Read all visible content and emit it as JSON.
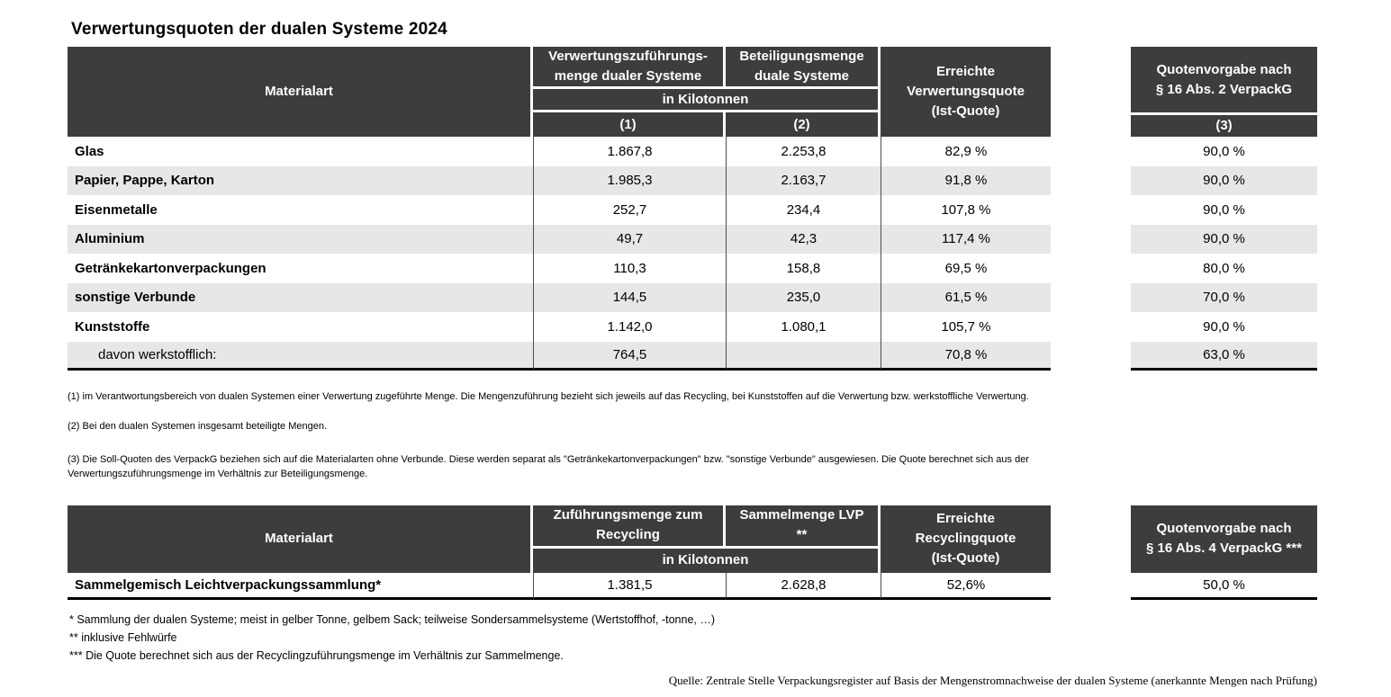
{
  "page": {
    "title": "Verwertungsquoten der dualen Systeme 2024",
    "source": "Quelle: Zentrale Stelle Verpackungsregister auf Basis der Mengenstromnachweise der dualen Systeme (anerkannte Mengen nach Prüfung)"
  },
  "colors": {
    "header_bg": "#3d3d3d",
    "row_shade": "#e7e7e7",
    "separator": "#4d4d4d"
  },
  "table1": {
    "headers": {
      "materialart": "Materialart",
      "col1": "Verwertungszuführungs-\nmenge dualer Systeme",
      "col2": "Beteiligungsmenge\nduale Systeme",
      "unit": "in Kilotonnen",
      "ref1": "(1)",
      "ref2": "(2)",
      "ist": "Erreichte\nVerwertungsquote\n(Ist-Quote)",
      "soll": "Quotenvorgabe nach\n§ 16 Abs. 2 VerpackG",
      "ref3": "(3)"
    },
    "rows": [
      {
        "material": "Glas",
        "v1": "1.867,8",
        "v2": "2.253,8",
        "ist": "82,9 %",
        "soll": "90,0 %",
        "indent": false
      },
      {
        "material": "Papier, Pappe, Karton",
        "v1": "1.985,3",
        "v2": "2.163,7",
        "ist": "91,8 %",
        "soll": "90,0 %",
        "indent": false
      },
      {
        "material": "Eisenmetalle",
        "v1": "252,7",
        "v2": "234,4",
        "ist": "107,8 %",
        "soll": "90,0 %",
        "indent": false
      },
      {
        "material": "Aluminium",
        "v1": "49,7",
        "v2": "42,3",
        "ist": "117,4 %",
        "soll": "90,0 %",
        "indent": false
      },
      {
        "material": "Getränkekartonverpackungen",
        "v1": "110,3",
        "v2": "158,8",
        "ist": "69,5 %",
        "soll": "80,0 %",
        "indent": false
      },
      {
        "material": "sonstige Verbunde",
        "v1": "144,5",
        "v2": "235,0",
        "ist": "61,5 %",
        "soll": "70,0 %",
        "indent": false
      },
      {
        "material": "Kunststoffe",
        "v1": "1.142,0",
        "v2": "1.080,1",
        "ist": "105,7 %",
        "soll": "90,0 %",
        "indent": false
      },
      {
        "material": "davon werkstofflich:",
        "v1": "764,5",
        "v2": "",
        "ist": "70,8 %",
        "soll": "63,0 %",
        "indent": true
      }
    ]
  },
  "footnotes_table1": [
    "(1) im Verantwortungsbereich von dualen Systemen einer Verwertung zugeführte Menge. Die Mengenzuführung bezieht sich jeweils auf das Recycling, bei Kunststoffen auf die Verwertung bzw. werkstoffliche Verwertung.",
    "(2) Bei den dualen Systemen insgesamt beteiligte Mengen.",
    "(3) Die Soll-Quoten des VerpackG beziehen sich auf die Materialarten ohne Verbunde. Diese werden separat als \"Getränkekartonverpackungen\" bzw. \"sonstige Verbunde\" ausgewiesen. Die Quote berechnet sich aus der Verwertungszuführungsmenge im Verhältnis zur Beteiligungsmenge."
  ],
  "table2": {
    "headers": {
      "materialart": "Materialart",
      "col1": "Zuführungsmenge zum\nRecycling",
      "col2": "Sammelmenge LVP\n**",
      "unit": "in Kilotonnen",
      "ist": "Erreichte\nRecyclingquote\n(Ist-Quote)",
      "soll": "Quotenvorgabe nach\n§ 16 Abs. 4 VerpackG ***"
    },
    "rows": [
      {
        "material": "Sammelgemisch Leichtverpackungssammlung*",
        "v1": "1.381,5",
        "v2": "2.628,8",
        "ist": "52,6%",
        "soll": "50,0 %",
        "indent": false
      }
    ]
  },
  "footnotes_table2": [
    "* Sammlung der dualen Systeme; meist in gelber Tonne, gelbem Sack; teilweise Sondersammelsysteme (Wertstoffhof, -tonne, …)",
    "** inklusive Fehlwürfe",
    "*** Die Quote berechnet sich aus der Recyclingzuführungsmenge im Verhältnis zur Sammelmenge."
  ]
}
